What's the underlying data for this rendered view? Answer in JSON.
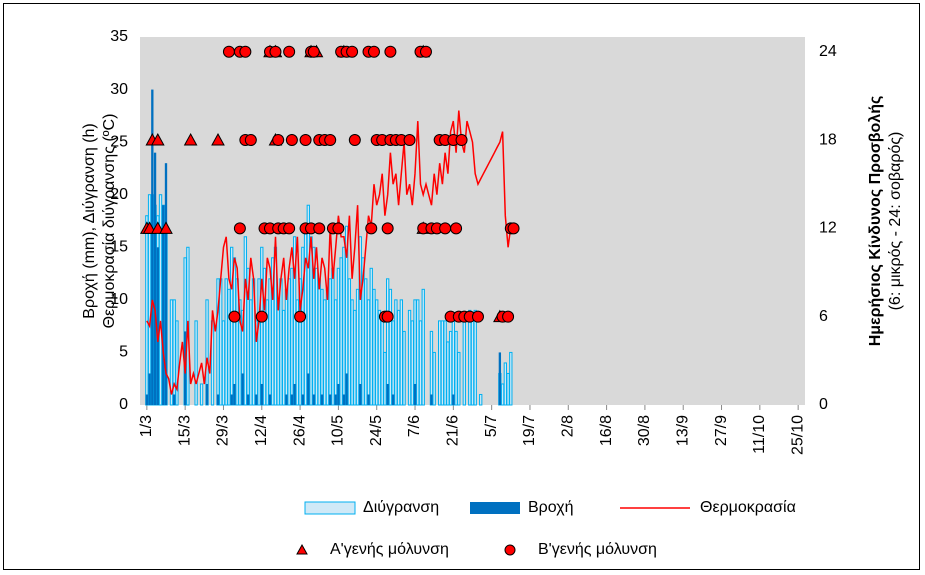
{
  "chart_data": {
    "type": "combo",
    "ylabel": [
      "Βροχή (mm), Διύγρανση (h)",
      "Θερμοκρασία διύγρανσης (ºC)"
    ],
    "y2label": [
      "Ημερήσιος Κίνδυνος Προσβολής",
      "(6: μικρός - 24: σοβαρός)"
    ],
    "xlim": [
      -2.5,
      240.5
    ],
    "xticks": [
      {
        "value": 0,
        "label": "1/3"
      },
      {
        "value": 14,
        "label": "15/3"
      },
      {
        "value": 28,
        "label": "29/3"
      },
      {
        "value": 42,
        "label": "12/4"
      },
      {
        "value": 56,
        "label": "26/4"
      },
      {
        "value": 70,
        "label": "10/5"
      },
      {
        "value": 84,
        "label": "24/5"
      },
      {
        "value": 98,
        "label": "7/6"
      },
      {
        "value": 112,
        "label": "21/6"
      },
      {
        "value": 126,
        "label": "5/7"
      },
      {
        "value": 140,
        "label": "19/7"
      },
      {
        "value": 154,
        "label": "2/8"
      },
      {
        "value": 168,
        "label": "16/8"
      },
      {
        "value": 182,
        "label": "30/8"
      },
      {
        "value": 196,
        "label": "13/9"
      },
      {
        "value": 210,
        "label": "27/9"
      },
      {
        "value": 224,
        "label": "11/10"
      },
      {
        "value": 238,
        "label": "25/10"
      }
    ],
    "ylim": [
      0,
      35
    ],
    "yticks": [
      0,
      5,
      10,
      15,
      20,
      25,
      30,
      35
    ],
    "y2lim": [
      0,
      25
    ],
    "y2ticks": [
      0,
      6,
      12,
      18,
      24
    ],
    "grid": false,
    "x": [
      0,
      1,
      2,
      3,
      4,
      5,
      6,
      7,
      8,
      9,
      10,
      11,
      12,
      13,
      14,
      15,
      16,
      17,
      18,
      19,
      20,
      21,
      22,
      23,
      24,
      25,
      26,
      27,
      28,
      29,
      30,
      31,
      32,
      33,
      34,
      35,
      36,
      37,
      38,
      39,
      40,
      41,
      42,
      43,
      44,
      45,
      46,
      47,
      48,
      49,
      50,
      51,
      52,
      53,
      54,
      55,
      56,
      57,
      58,
      59,
      60,
      61,
      62,
      63,
      64,
      65,
      66,
      67,
      68,
      69,
      70,
      71,
      72,
      73,
      74,
      75,
      76,
      77,
      78,
      79,
      80,
      81,
      82,
      83,
      84,
      85,
      86,
      87,
      88,
      89,
      90,
      91,
      92,
      93,
      94,
      95,
      96,
      97,
      98,
      99,
      100,
      101,
      102,
      103,
      104,
      105,
      106,
      107,
      108,
      109,
      110,
      111,
      112,
      113,
      114,
      115,
      116,
      117,
      118,
      119,
      120,
      121,
      122,
      123,
      124,
      125,
      126,
      127,
      128,
      129,
      130,
      131,
      132,
      133
    ],
    "series": [
      {
        "name": "Διύγρανση",
        "type": "bar",
        "color": "#cfe9f7",
        "edge": "#00b0f0",
        "values": [
          18,
          20,
          20,
          19,
          18,
          20,
          19,
          17,
          0,
          10,
          10,
          8,
          0,
          0,
          14,
          15,
          0,
          0,
          8,
          0,
          2,
          0,
          10,
          0,
          8,
          0,
          12,
          12,
          8,
          12,
          11,
          15,
          14,
          12,
          10,
          9,
          16,
          13,
          10,
          12,
          8,
          12,
          15,
          13,
          10,
          12,
          14,
          15,
          10,
          12,
          9,
          11,
          12,
          13,
          16,
          10,
          12,
          15,
          17,
          19,
          16,
          15,
          13,
          12,
          11,
          10,
          11,
          12,
          13,
          10,
          13,
          14,
          15,
          17,
          12,
          10,
          9,
          11,
          16,
          14,
          12,
          10,
          13,
          11,
          10,
          9,
          8,
          5,
          12,
          11,
          8,
          10,
          9,
          10,
          7,
          0,
          9,
          8,
          10,
          10,
          8,
          11,
          0,
          0,
          7,
          5,
          0,
          8,
          8,
          8,
          6,
          7,
          8,
          7,
          5,
          0,
          8,
          0,
          9,
          8,
          9,
          0,
          1,
          0,
          0,
          0,
          0,
          0,
          0,
          3,
          2,
          4,
          3,
          5
        ]
      },
      {
        "name": "Βροχή",
        "type": "bar",
        "color": "#0070c0",
        "values": [
          1,
          3,
          30,
          24,
          15,
          0,
          19,
          23,
          0,
          0,
          1,
          0,
          0,
          0,
          7,
          0,
          0,
          0,
          0,
          0,
          0,
          0,
          2,
          0,
          0,
          0,
          1,
          0,
          0,
          0,
          0,
          1,
          2,
          0,
          0,
          3,
          0,
          1,
          0,
          0,
          1,
          0,
          2,
          0,
          0,
          1,
          0,
          0,
          0,
          0,
          0,
          1,
          0,
          1,
          2,
          0,
          0,
          1,
          0,
          3,
          0,
          1,
          0,
          0,
          1,
          0,
          0,
          1,
          0,
          1,
          2,
          0,
          1,
          3,
          0,
          0,
          0,
          0,
          2,
          0,
          0,
          1,
          0,
          0,
          0,
          0,
          0,
          0,
          2,
          0,
          1,
          0,
          0,
          0,
          0,
          0,
          0,
          0,
          2,
          0,
          0,
          0,
          0,
          0,
          1,
          0,
          0,
          0,
          0,
          0,
          0,
          0,
          1,
          0,
          0,
          0,
          0,
          0,
          0,
          0,
          0,
          0,
          0,
          0,
          0,
          0,
          0,
          0,
          0,
          5,
          0,
          0,
          0,
          0
        ]
      },
      {
        "name": "Θερμοκρασία",
        "type": "line",
        "color": "#ff0000",
        "values": [
          8,
          7.5,
          10,
          9,
          6,
          8,
          5,
          3,
          2.5,
          1,
          2,
          1.5,
          4,
          6,
          3,
          8,
          2,
          3,
          2,
          3,
          4,
          2,
          4.5,
          3,
          9,
          7,
          9,
          12,
          15,
          16,
          12,
          11,
          14,
          13,
          8,
          7,
          12,
          10,
          14,
          12,
          6,
          8,
          12,
          9,
          14,
          13,
          10,
          16,
          9,
          12,
          14,
          10,
          13,
          15,
          12,
          16,
          9,
          11,
          14,
          13,
          16,
          12,
          15,
          11,
          14,
          13,
          10,
          17,
          12,
          15,
          18,
          16,
          16,
          14,
          18,
          12,
          15,
          19,
          10,
          12,
          15,
          18,
          17,
          21,
          19,
          20,
          22,
          18,
          20,
          24,
          21,
          22,
          19,
          22,
          25,
          20,
          21,
          19,
          22,
          27,
          21,
          20,
          21,
          20,
          19,
          22,
          20,
          23,
          21,
          24,
          22,
          26,
          27,
          24,
          28,
          25,
          24,
          27,
          26,
          25,
          22,
          21,
          21.5,
          22,
          22.5,
          23,
          23.5,
          24,
          24.5,
          25,
          26,
          18,
          15,
          17
        ]
      },
      {
        "name": "Α'γενής μόλυνση",
        "type": "scatter",
        "axis": "y2",
        "marker": "triangle",
        "color": "#ff0000",
        "x": [
          0,
          1,
          2,
          4,
          4,
          7,
          16,
          26,
          45,
          47,
          47,
          60,
          62,
          72,
          101,
          101,
          129
        ],
        "values": [
          12,
          12,
          18,
          12,
          18,
          12,
          18,
          18,
          24,
          24,
          18,
          24,
          24,
          24,
          24,
          12,
          6
        ]
      },
      {
        "name": "Β'γενής μόλυνση",
        "type": "scatter",
        "axis": "y2",
        "marker": "circle",
        "color": "#ff0000",
        "x": [
          30,
          34,
          36,
          45,
          47,
          52,
          60,
          61,
          71,
          73,
          75,
          81,
          83,
          89,
          100,
          102,
          36,
          38,
          48,
          53,
          58,
          63,
          65,
          67,
          76,
          84,
          86,
          89,
          91,
          93,
          96,
          107,
          109,
          112,
          115,
          34,
          43,
          45,
          48,
          50,
          52,
          58,
          60,
          63,
          68,
          70,
          82,
          88,
          101,
          104,
          106,
          109,
          113,
          133,
          134,
          32,
          42,
          56,
          87,
          88,
          111,
          114,
          116,
          118,
          121,
          130,
          132
        ],
        "values": [
          24,
          24,
          24,
          24,
          24,
          24,
          24,
          24,
          24,
          24,
          24,
          24,
          24,
          24,
          24,
          24,
          18,
          18,
          18,
          18,
          18,
          18,
          18,
          18,
          18,
          18,
          18,
          18,
          18,
          18,
          18,
          18,
          18,
          18,
          18,
          12,
          12,
          12,
          12,
          12,
          12,
          12,
          12,
          12,
          12,
          12,
          12,
          12,
          12,
          12,
          12,
          12,
          12,
          12,
          12,
          6,
          6,
          6,
          6,
          6,
          6,
          6,
          6,
          6,
          6,
          6,
          6
        ]
      }
    ]
  }
}
